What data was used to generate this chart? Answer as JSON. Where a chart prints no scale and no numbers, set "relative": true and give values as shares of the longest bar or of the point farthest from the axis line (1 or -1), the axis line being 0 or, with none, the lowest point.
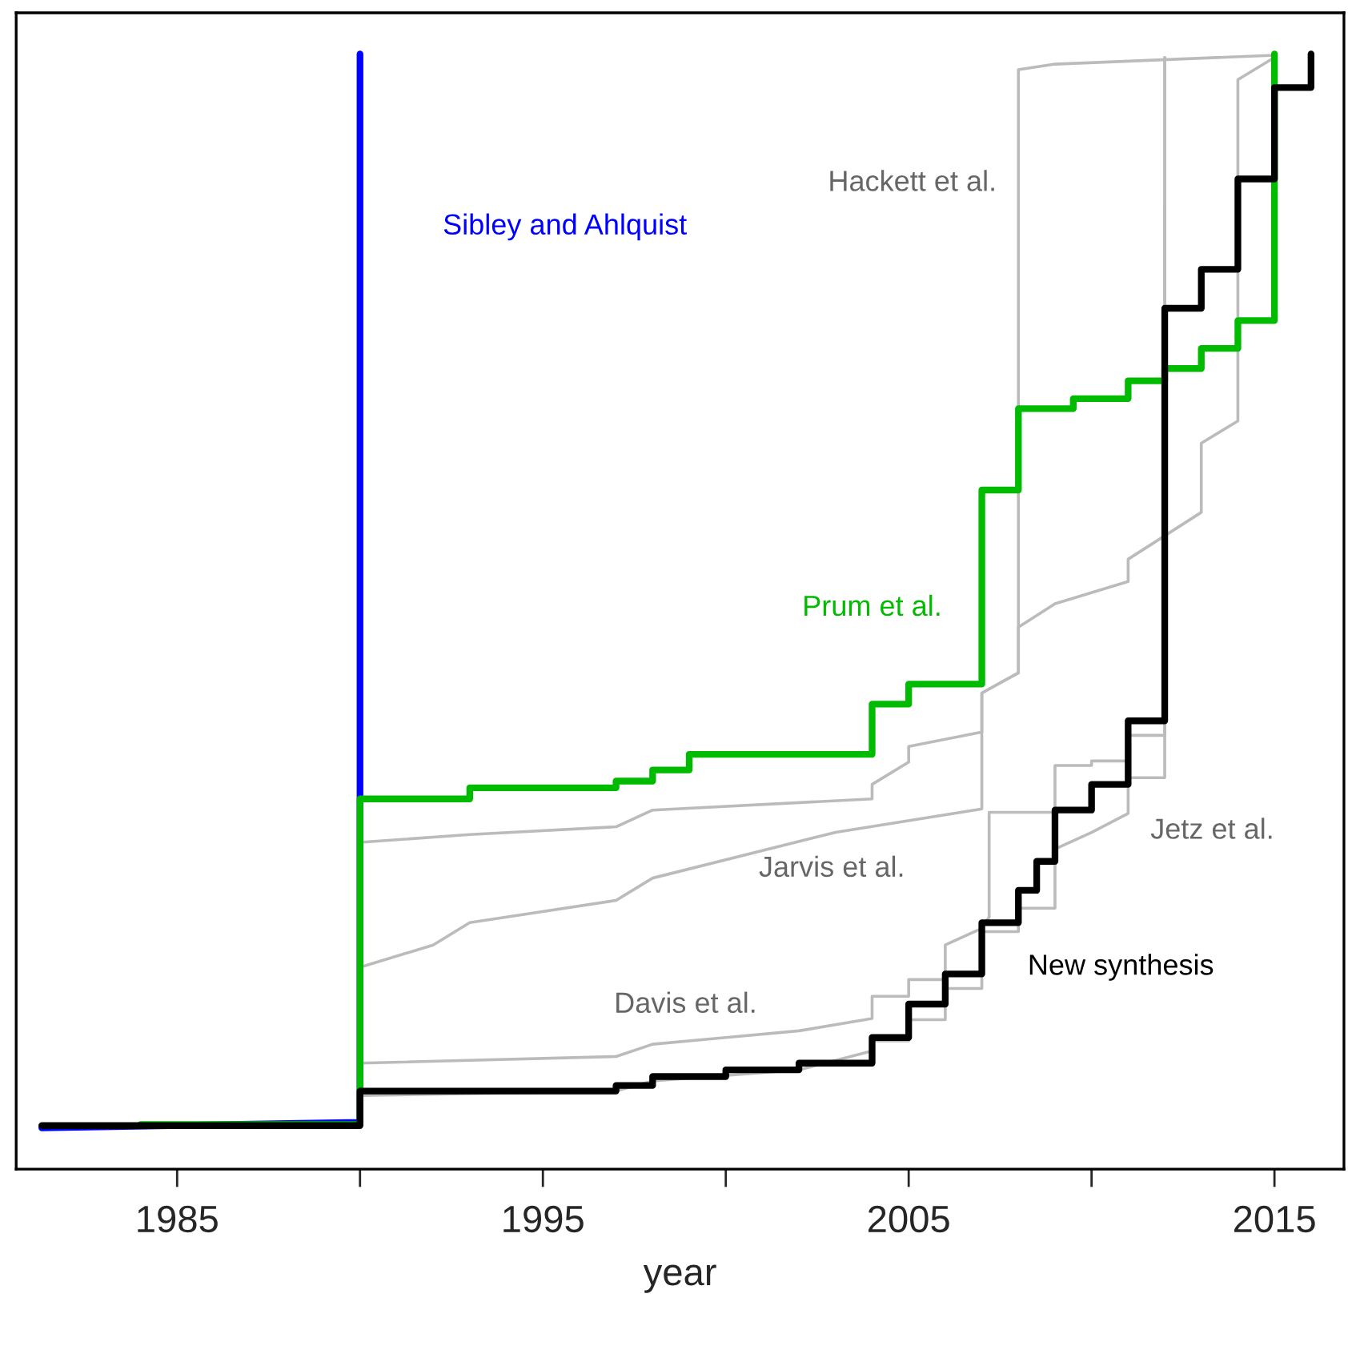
{
  "chart_data": {
    "type": "line",
    "xlabel": "year",
    "relative": true,
    "xlim": [
      1980.6,
      2016.9
    ],
    "xticks": [
      1985,
      {
        "value": 1990,
        "label": null
      },
      1995,
      {
        "value": 2000,
        "label": null
      },
      2005,
      {
        "value": 2010,
        "label": null
      },
      2015
    ],
    "series": [
      {
        "name": "Hackett et al.",
        "color": "#bbbbbb",
        "x": [
          1990,
          1993,
          1997,
          1998,
          2004,
          2004,
          2005,
          2005,
          2007,
          2007,
          2008,
          2008,
          2009,
          2015
        ],
        "values": [
          0.293,
          0.3,
          0.307,
          0.322,
          0.332,
          0.345,
          0.365,
          0.379,
          0.392,
          0.427,
          0.445,
          0.986,
          0.991,
          0.999
        ]
      },
      {
        "name": "Jarvis et al.",
        "color": "#bbbbbb",
        "x": [
          1990,
          1992,
          1993,
          1997,
          1998,
          2003,
          2007,
          2007,
          2008,
          2008,
          2009,
          2011,
          2011,
          2013,
          2013,
          2014,
          2014,
          2015
        ],
        "values": [
          0.181,
          0.201,
          0.221,
          0.241,
          0.261,
          0.302,
          0.323,
          0.427,
          0.445,
          0.486,
          0.507,
          0.527,
          0.547,
          0.589,
          0.651,
          0.671,
          0.977,
          0.997
        ]
      },
      {
        "name": "Davis et al.",
        "color": "#bbbbbb",
        "x": [
          1990,
          1997,
          1998,
          2000,
          2002,
          2004,
          2004,
          2005,
          2005,
          2006,
          2006,
          2007,
          2007.2,
          2007.2,
          2009,
          2009,
          2010,
          2010,
          2011,
          2011,
          2012,
          2012
        ],
        "values": [
          0.095,
          0.101,
          0.112,
          0.118,
          0.124,
          0.135,
          0.155,
          0.155,
          0.17,
          0.17,
          0.201,
          0.216,
          0.226,
          0.32,
          0.32,
          0.362,
          0.362,
          0.366,
          0.366,
          0.389,
          0.389,
          0.997
        ]
      },
      {
        "name": "Jetz et al.",
        "color": "#bbbbbb",
        "x": [
          1990,
          1997,
          1998,
          2002,
          2004,
          2004,
          2005,
          2005,
          2006,
          2006,
          2007,
          2007,
          2008,
          2008,
          2009,
          2009,
          2010,
          2011,
          2011,
          2012,
          2012
        ],
        "values": [
          0.066,
          0.07,
          0.079,
          0.089,
          0.106,
          0.115,
          0.115,
          0.134,
          0.134,
          0.162,
          0.162,
          0.213,
          0.213,
          0.234,
          0.234,
          0.287,
          0.302,
          0.319,
          0.351,
          0.351,
          0.997
        ]
      },
      {
        "name": "Sibley and Ahlquist",
        "color": "#0000ff",
        "x": [
          1981.3,
          1990,
          1990
        ],
        "values": [
          0.037,
          0.042,
          1.0
        ]
      },
      {
        "name": "Prum et al.",
        "color": "#00bb00",
        "type": "step",
        "x": [
          1984,
          1990,
          1993,
          1997,
          1998,
          1999,
          2004,
          2005,
          2007,
          2008,
          2009.5,
          2011,
          2012,
          2013,
          2014,
          2015
        ],
        "values": [
          0.04,
          0.332,
          0.342,
          0.348,
          0.358,
          0.372,
          0.417,
          0.435,
          0.609,
          0.682,
          0.691,
          0.707,
          0.718,
          0.736,
          0.761,
          1.0
        ]
      },
      {
        "name": "New synthesis",
        "color": "#000000",
        "type": "step",
        "x": [
          1981.3,
          1990,
          1997,
          1998,
          2000,
          2002,
          2004,
          2005,
          2006,
          2007,
          2008,
          2008.5,
          2009,
          2010,
          2011,
          2012,
          2013,
          2014,
          2015,
          2016
        ],
        "values": [
          0.039,
          0.07,
          0.075,
          0.083,
          0.089,
          0.095,
          0.118,
          0.148,
          0.175,
          0.221,
          0.25,
          0.276,
          0.322,
          0.345,
          0.402,
          0.772,
          0.807,
          0.888,
          0.97,
          1.0
        ]
      }
    ]
  }
}
